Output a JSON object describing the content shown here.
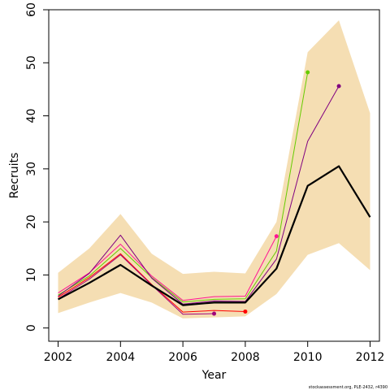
{
  "chart_data": {
    "type": "line",
    "xlabel": "Year",
    "ylabel": "Recruits",
    "xlim": [
      2001.7,
      2012.3
    ],
    "ylim": [
      -2.5,
      60
    ],
    "xticks": [
      2002,
      2004,
      2006,
      2008,
      2010,
      2012
    ],
    "yticks": [
      0,
      10,
      20,
      30,
      40,
      50,
      60
    ],
    "grid": false,
    "legend": "none",
    "credit": "stockassessment.org, PLE-2432, r4390",
    "band": {
      "x": [
        2002,
        2003,
        2004,
        2005,
        2006,
        2007,
        2008,
        2009,
        2010,
        2011,
        2012
      ],
      "lower": [
        2.8,
        4.8,
        6.6,
        4.8,
        1.8,
        2.0,
        2.2,
        6.4,
        13.8,
        16.0,
        10.9
      ],
      "upper": [
        10.4,
        15.0,
        21.5,
        14.0,
        10.2,
        10.6,
        10.3,
        20.0,
        52.0,
        58.0,
        40.5
      ],
      "color": "#f5deb3"
    },
    "series": [
      {
        "color": "#000000",
        "width": 2.2,
        "x": [
          2002,
          2003,
          2004,
          2005,
          2006,
          2007,
          2008,
          2009,
          2010,
          2011,
          2012
        ],
        "values": [
          5.4,
          8.5,
          11.9,
          8.0,
          4.3,
          4.8,
          4.8,
          11.2,
          26.8,
          30.5,
          20.9
        ],
        "endpoint": false
      },
      {
        "color": "#ff0000",
        "width": 1,
        "x": [
          2002,
          2003,
          2004,
          2005,
          2006,
          2007,
          2008
        ],
        "values": [
          5.8,
          9.5,
          14.0,
          8.2,
          3.0,
          3.3,
          3.1
        ],
        "endpoint": true
      },
      {
        "color": "#a0007a",
        "width": 1,
        "x": [
          2002,
          2003,
          2004,
          2005,
          2006,
          2007
        ],
        "values": [
          5.5,
          9.2,
          13.8,
          8.1,
          2.6,
          2.7
        ],
        "endpoint": true
      },
      {
        "color": "#ff1493",
        "width": 1,
        "x": [
          2002,
          2003,
          2004,
          2005,
          2006,
          2007,
          2008,
          2009
        ],
        "values": [
          6.6,
          10.4,
          15.8,
          9.8,
          5.2,
          5.9,
          6.0,
          17.3
        ],
        "endpoint": true
      },
      {
        "color": "#66cc00",
        "width": 1,
        "x": [
          2002,
          2003,
          2004,
          2005,
          2006,
          2007,
          2008,
          2009,
          2010
        ],
        "values": [
          6.2,
          9.8,
          15.0,
          9.5,
          4.9,
          5.4,
          5.5,
          14.5,
          48.2
        ],
        "endpoint": true
      },
      {
        "color": "#800080",
        "width": 1,
        "x": [
          2002,
          2003,
          2004,
          2005,
          2006,
          2007,
          2008,
          2009,
          2010,
          2011
        ],
        "values": [
          6.0,
          10.3,
          17.5,
          9.4,
          4.5,
          5.1,
          5.0,
          13.0,
          35.2,
          45.6
        ],
        "endpoint": true
      }
    ]
  }
}
